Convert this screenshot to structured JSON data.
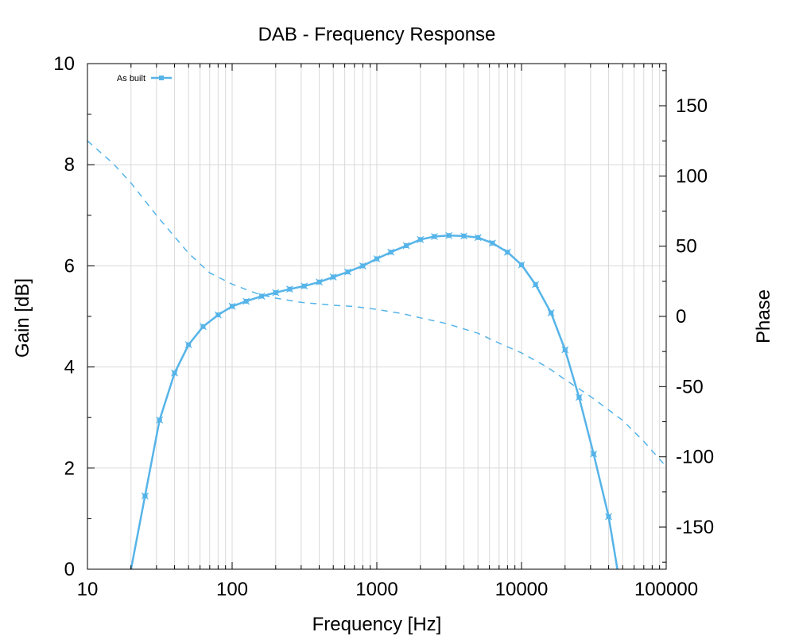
{
  "chart_data": {
    "type": "line",
    "title": "DAB - Frequency Response",
    "xlabel": "Frequency [Hz]",
    "ylabel": "Gain [dB]",
    "y2label": "Phase",
    "xscale": "log",
    "xlim": [
      10,
      100000
    ],
    "ylim": [
      0,
      10
    ],
    "y2lim": [
      -180,
      180
    ],
    "grid": true,
    "legend_position": "top-left",
    "x_ticks": [
      "10",
      "100",
      "1000",
      "10000",
      "100000"
    ],
    "y_ticks": [
      "0",
      "2",
      "4",
      "6",
      "8",
      "10"
    ],
    "y2_ticks": [
      "-150",
      "-100",
      "-50",
      "0",
      "50",
      "100",
      "150"
    ],
    "color": "#56b4e9",
    "series": [
      {
        "name": "As built",
        "axis": "left",
        "style": "solid-markers",
        "x": [
          20,
          25,
          31.5,
          40,
          50,
          63,
          80,
          100,
          125,
          160,
          200,
          250,
          315,
          400,
          500,
          630,
          800,
          1000,
          1250,
          1600,
          2000,
          2500,
          3150,
          4000,
          5000,
          6300,
          8000,
          10000,
          12500,
          16000,
          20000,
          25000,
          31500,
          40000,
          46000
        ],
        "y": [
          0.0,
          1.45,
          2.95,
          3.88,
          4.44,
          4.8,
          5.03,
          5.2,
          5.3,
          5.4,
          5.47,
          5.54,
          5.6,
          5.68,
          5.78,
          5.88,
          6.0,
          6.14,
          6.27,
          6.4,
          6.52,
          6.58,
          6.6,
          6.59,
          6.56,
          6.45,
          6.27,
          6.02,
          5.63,
          5.07,
          4.34,
          3.4,
          2.28,
          1.04,
          0.0
        ],
        "markers": [
          false,
          true,
          true,
          true,
          true,
          true,
          true,
          true,
          true,
          true,
          true,
          true,
          true,
          true,
          true,
          true,
          true,
          true,
          true,
          true,
          true,
          true,
          true,
          true,
          true,
          true,
          true,
          true,
          true,
          true,
          true,
          true,
          true,
          true,
          false
        ]
      },
      {
        "axis": "right",
        "style": "dashed",
        "x": [
          10,
          15,
          20,
          30,
          50,
          70,
          100,
          150,
          200,
          300,
          500,
          700,
          1000,
          1500,
          2000,
          3000,
          5000,
          7000,
          10000,
          15000,
          20000,
          30000,
          50000,
          70000,
          100000
        ],
        "y": [
          125,
          109,
          95,
          72,
          45,
          31,
          23,
          16,
          13,
          10,
          8,
          7,
          5,
          2,
          -1,
          -5,
          -12,
          -19,
          -26,
          -36,
          -45,
          -57,
          -74,
          -89,
          -107
        ]
      }
    ]
  }
}
